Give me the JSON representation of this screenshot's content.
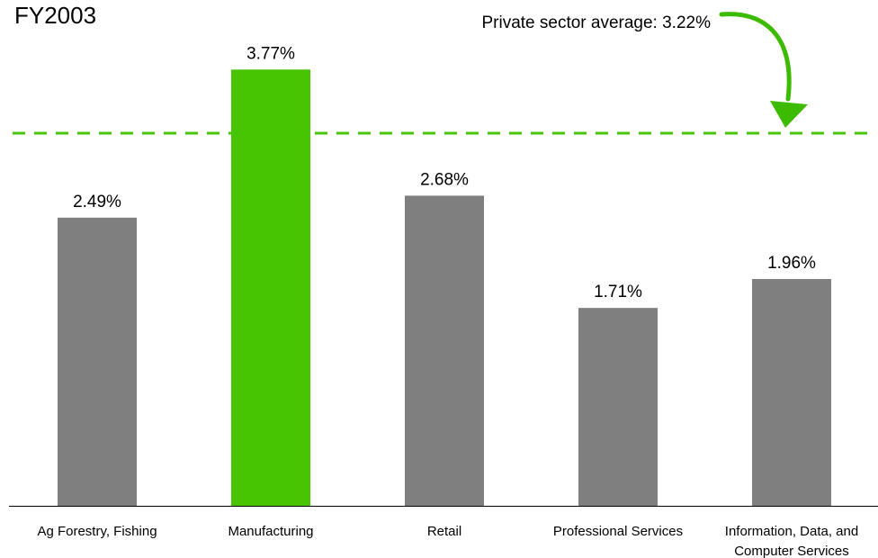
{
  "chart_data": {
    "type": "bar",
    "title": "FY2003",
    "categories": [
      [
        "Ag Forestry, Fishing"
      ],
      [
        "Manufacturing"
      ],
      [
        "Retail"
      ],
      [
        "Professional Services"
      ],
      [
        "Information, Data, and",
        "Computer Services"
      ]
    ],
    "values": [
      2.49,
      3.77,
      2.68,
      1.71,
      1.96
    ],
    "value_labels": [
      "2.49%",
      "3.77%",
      "2.68%",
      "1.71%",
      "1.96%"
    ],
    "highlight_index": 1,
    "reference_line": {
      "value": 3.22,
      "label": "Private sector average: 3.22%"
    },
    "ylim": [
      0,
      4.2
    ],
    "xlabel": "",
    "ylabel": "",
    "grid": false,
    "colors": {
      "bar": "#7f7f7f",
      "highlight": "#46c500",
      "reference_line": "#46c500",
      "arrow": "#3dbb00",
      "axis": "#000000"
    }
  }
}
